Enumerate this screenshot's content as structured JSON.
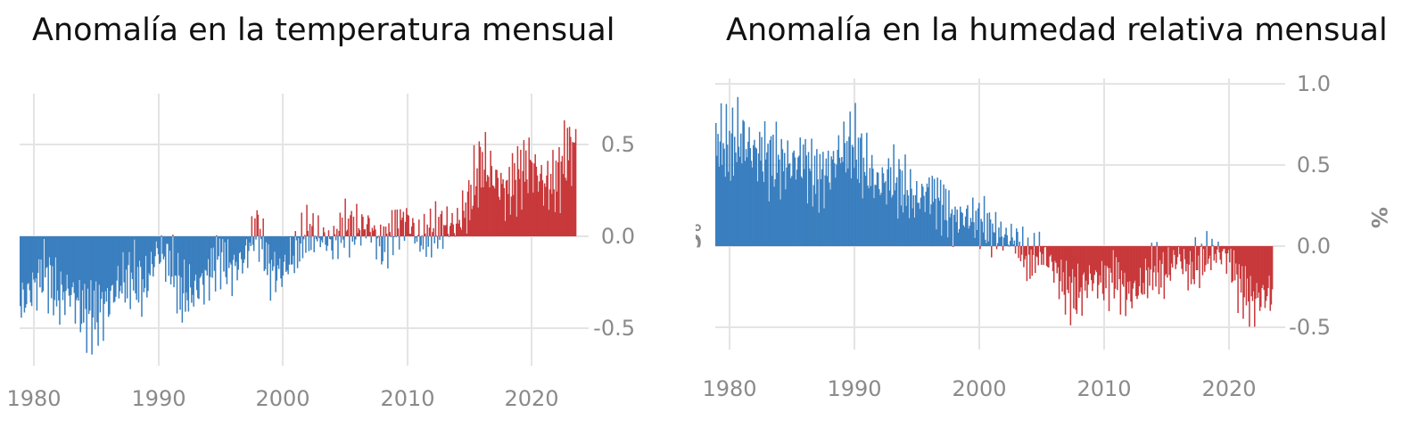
{
  "chart_data": [
    {
      "type": "bar",
      "title": "Anomalía en la temperatura mensual",
      "xlabel": "",
      "ylabel": "",
      "xlim": [
        1979,
        2023.7
      ],
      "ylim": [
        -0.7,
        0.72
      ],
      "x_ticks": [
        "1980",
        "1990",
        "2000",
        "2010",
        "2020"
      ],
      "y_ticks": [
        "0.5",
        "0.0",
        "-0.5"
      ],
      "y_axis_position": "right",
      "grid": true,
      "colors": {
        "positive": "#c8393b",
        "negative": "#3a7fbf"
      },
      "resolution": "monthly",
      "yearly_mean": [
        {
          "year": 1979,
          "value": -0.38
        },
        {
          "year": 1980,
          "value": -0.28
        },
        {
          "year": 1981,
          "value": -0.18
        },
        {
          "year": 1982,
          "value": -0.33
        },
        {
          "year": 1983,
          "value": -0.3
        },
        {
          "year": 1984,
          "value": -0.4
        },
        {
          "year": 1985,
          "value": -0.42
        },
        {
          "year": 1986,
          "value": -0.36
        },
        {
          "year": 1987,
          "value": -0.26
        },
        {
          "year": 1988,
          "value": -0.22
        },
        {
          "year": 1989,
          "value": -0.28
        },
        {
          "year": 1990,
          "value": -0.08
        },
        {
          "year": 1991,
          "value": -0.14
        },
        {
          "year": 1992,
          "value": -0.32
        },
        {
          "year": 1993,
          "value": -0.3
        },
        {
          "year": 1994,
          "value": -0.22
        },
        {
          "year": 1995,
          "value": -0.1
        },
        {
          "year": 1996,
          "value": -0.18
        },
        {
          "year": 1997,
          "value": -0.12
        },
        {
          "year": 1998,
          "value": 0.06
        },
        {
          "year": 1999,
          "value": -0.18
        },
        {
          "year": 2000,
          "value": -0.2
        },
        {
          "year": 2001,
          "value": -0.1
        },
        {
          "year": 2002,
          "value": 0.02
        },
        {
          "year": 2003,
          "value": 0.0
        },
        {
          "year": 2004,
          "value": -0.04
        },
        {
          "year": 2005,
          "value": 0.05
        },
        {
          "year": 2006,
          "value": 0.04
        },
        {
          "year": 2007,
          "value": 0.06
        },
        {
          "year": 2008,
          "value": -0.06
        },
        {
          "year": 2009,
          "value": 0.04
        },
        {
          "year": 2010,
          "value": 0.1
        },
        {
          "year": 2011,
          "value": -0.02
        },
        {
          "year": 2012,
          "value": 0.02
        },
        {
          "year": 2013,
          "value": 0.06
        },
        {
          "year": 2014,
          "value": 0.06
        },
        {
          "year": 2015,
          "value": 0.18
        },
        {
          "year": 2016,
          "value": 0.4
        },
        {
          "year": 2017,
          "value": 0.32
        },
        {
          "year": 2018,
          "value": 0.24
        },
        {
          "year": 2019,
          "value": 0.34
        },
        {
          "year": 2020,
          "value": 0.4
        },
        {
          "year": 2021,
          "value": 0.28
        },
        {
          "year": 2022,
          "value": 0.3
        },
        {
          "year": 2023,
          "value": 0.48
        }
      ]
    },
    {
      "type": "bar",
      "title": "Anomalía en la humedad relativa mensual",
      "xlabel": "",
      "ylabel": "°C",
      "y2label": "%",
      "xlim": [
        1979,
        2023.7
      ],
      "ylim": [
        -0.65,
        1.0
      ],
      "x_ticks": [
        "1980",
        "1990",
        "2000",
        "2010",
        "2020"
      ],
      "y_ticks": [
        "1.0",
        "0.5",
        "0.0",
        "-0.5"
      ],
      "y_axis_position": "right",
      "grid": true,
      "colors": {
        "positive": "#3a7fbf",
        "negative": "#c8393b"
      },
      "resolution": "monthly",
      "yearly_mean": [
        {
          "year": 1979,
          "value": 0.66
        },
        {
          "year": 1980,
          "value": 0.6
        },
        {
          "year": 1981,
          "value": 0.66
        },
        {
          "year": 1982,
          "value": 0.58
        },
        {
          "year": 1983,
          "value": 0.56
        },
        {
          "year": 1984,
          "value": 0.52
        },
        {
          "year": 1985,
          "value": 0.5
        },
        {
          "year": 1986,
          "value": 0.54
        },
        {
          "year": 1987,
          "value": 0.42
        },
        {
          "year": 1988,
          "value": 0.46
        },
        {
          "year": 1989,
          "value": 0.58
        },
        {
          "year": 1990,
          "value": 0.62
        },
        {
          "year": 1991,
          "value": 0.48
        },
        {
          "year": 1992,
          "value": 0.38
        },
        {
          "year": 1993,
          "value": 0.42
        },
        {
          "year": 1994,
          "value": 0.36
        },
        {
          "year": 1995,
          "value": 0.28
        },
        {
          "year": 1996,
          "value": 0.34
        },
        {
          "year": 1997,
          "value": 0.28
        },
        {
          "year": 1998,
          "value": 0.16
        },
        {
          "year": 1999,
          "value": 0.18
        },
        {
          "year": 2000,
          "value": 0.16
        },
        {
          "year": 2001,
          "value": 0.1
        },
        {
          "year": 2002,
          "value": 0.06
        },
        {
          "year": 2003,
          "value": 0.04
        },
        {
          "year": 2004,
          "value": -0.1
        },
        {
          "year": 2005,
          "value": -0.04
        },
        {
          "year": 2006,
          "value": -0.12
        },
        {
          "year": 2007,
          "value": -0.26
        },
        {
          "year": 2008,
          "value": -0.3
        },
        {
          "year": 2009,
          "value": -0.2
        },
        {
          "year": 2010,
          "value": -0.22
        },
        {
          "year": 2011,
          "value": -0.18
        },
        {
          "year": 2012,
          "value": -0.3
        },
        {
          "year": 2013,
          "value": -0.26
        },
        {
          "year": 2014,
          "value": -0.14
        },
        {
          "year": 2015,
          "value": -0.18
        },
        {
          "year": 2016,
          "value": -0.06
        },
        {
          "year": 2017,
          "value": -0.16
        },
        {
          "year": 2018,
          "value": -0.08
        },
        {
          "year": 2019,
          "value": -0.04
        },
        {
          "year": 2020,
          "value": -0.06
        },
        {
          "year": 2021,
          "value": -0.24
        },
        {
          "year": 2022,
          "value": -0.34
        },
        {
          "year": 2023,
          "value": -0.3
        }
      ]
    }
  ]
}
